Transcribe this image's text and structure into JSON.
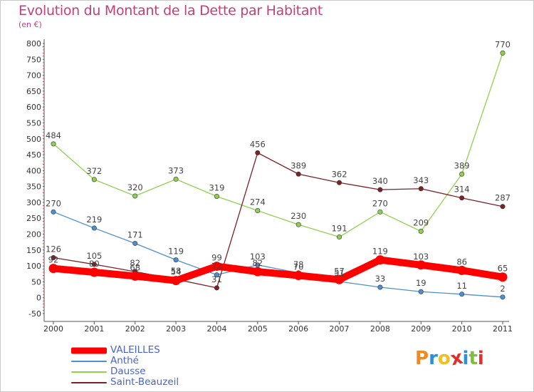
{
  "page": {
    "title": "Evolution du Montant de la Dette par Habitant",
    "subtitle": "(en €)"
  },
  "logo": {
    "text": "Proxiti",
    "colors": [
      "#f08a1e",
      "#2f8fd6",
      "#f0c020",
      "#e0302a",
      "#2f8fd6",
      "#7cc03c",
      "#e0302a"
    ]
  },
  "chart_data": {
    "type": "line",
    "x": [
      2000,
      2001,
      2002,
      2003,
      2004,
      2005,
      2006,
      2007,
      2008,
      2009,
      2010,
      2011
    ],
    "ylim": [
      -50,
      800
    ],
    "yticks": [
      -50,
      0,
      50,
      100,
      150,
      200,
      250,
      300,
      350,
      400,
      450,
      500,
      550,
      600,
      650,
      700,
      750,
      800
    ],
    "grid": false,
    "legend": "bottom-left",
    "series": [
      {
        "name": "VALEILLES",
        "color": "#ff0000",
        "values": [
          92,
          80,
          68,
          54,
          99,
          82,
          70,
          57,
          119,
          103,
          86,
          65
        ]
      },
      {
        "name": "Anthé",
        "color": "#4d8fcf",
        "values": [
          270,
          219,
          171,
          119,
          72,
          103,
          78,
          51,
          33,
          19,
          11,
          2
        ]
      },
      {
        "name": "Dausse",
        "color": "#8fd14f",
        "values": [
          484,
          372,
          320,
          373,
          319,
          274,
          230,
          191,
          270,
          209,
          389,
          770
        ]
      },
      {
        "name": "Saint-Beauzeil",
        "color": "#7a2226",
        "values": [
          126,
          105,
          82,
          58,
          31,
          456,
          389,
          362,
          340,
          343,
          314,
          287
        ]
      }
    ]
  }
}
